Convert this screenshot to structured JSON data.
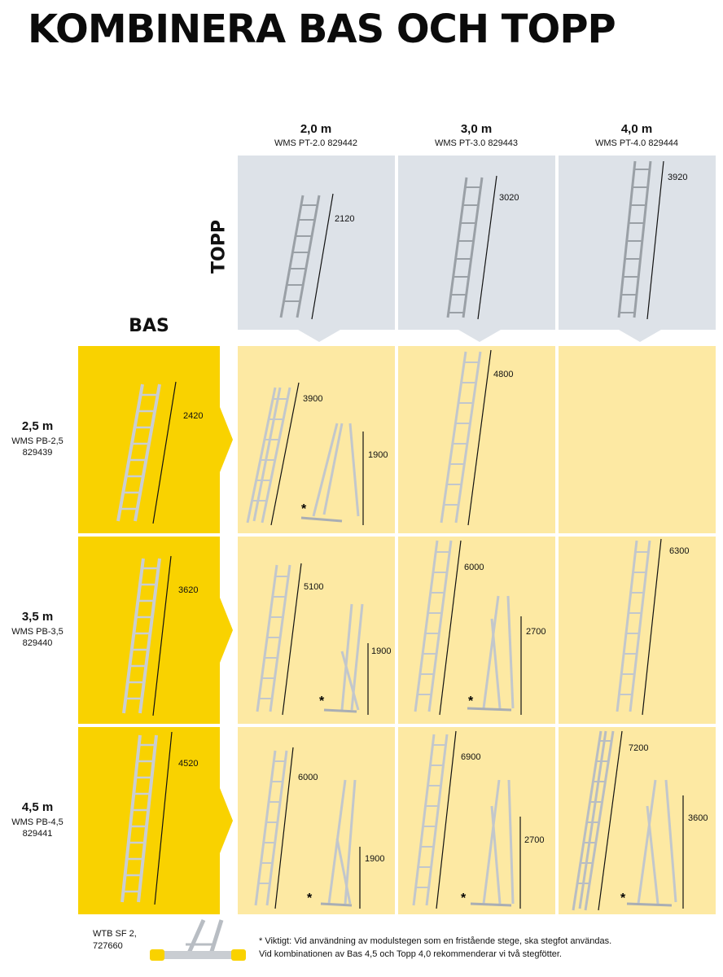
{
  "title": "KOMBINERA BAS OCH TOPP",
  "topp_label": "TOPP",
  "bas_label": "BAS",
  "columns": [
    {
      "size": "2,0 m",
      "code": "WMS PT-2.0 829442",
      "height": "2120"
    },
    {
      "size": "3,0 m",
      "code": "WMS PT-3.0 829443",
      "height": "3020"
    },
    {
      "size": "4,0 m",
      "code": "WMS PT-4.0 829444",
      "height": "3920"
    }
  ],
  "rows": [
    {
      "size": "2,5 m",
      "code1": "WMS PB-2,5",
      "code2": "829439",
      "height": "2420"
    },
    {
      "size": "3,5 m",
      "code1": "WMS PB-3,5",
      "code2": "829440",
      "height": "3620"
    },
    {
      "size": "4,5 m",
      "code1": "WMS PB-4,5",
      "code2": "829441",
      "height": "4520"
    }
  ],
  "combos": [
    [
      {
        "length": "3900",
        "stand": "1900"
      },
      {
        "length": "4800",
        "stand": ""
      },
      {
        "length": "",
        "stand": ""
      }
    ],
    [
      {
        "length": "5100",
        "stand": "1900"
      },
      {
        "length": "6000",
        "stand": "2700"
      },
      {
        "length": "6300",
        "stand": ""
      }
    ],
    [
      {
        "length": "6000",
        "stand": "1900"
      },
      {
        "length": "6900",
        "stand": "2700"
      },
      {
        "length": "7200",
        "stand": "3600"
      }
    ]
  ],
  "asterisk": "*",
  "accessory": {
    "name": "WTB SF 2,",
    "code": "727660"
  },
  "footnote": {
    "line1": "* Viktigt: Vid användning av modulstegen som en fristående stege, ska stegfot användas.",
    "line2": "Vid kombinationen av Bas 4,5 och Topp 4,0 rekommenderar vi två stegfötter."
  },
  "colors": {
    "topp_bg": "#dde2e8",
    "bas_bg": "#f9d200",
    "combo_bg": "#fde9a3"
  }
}
